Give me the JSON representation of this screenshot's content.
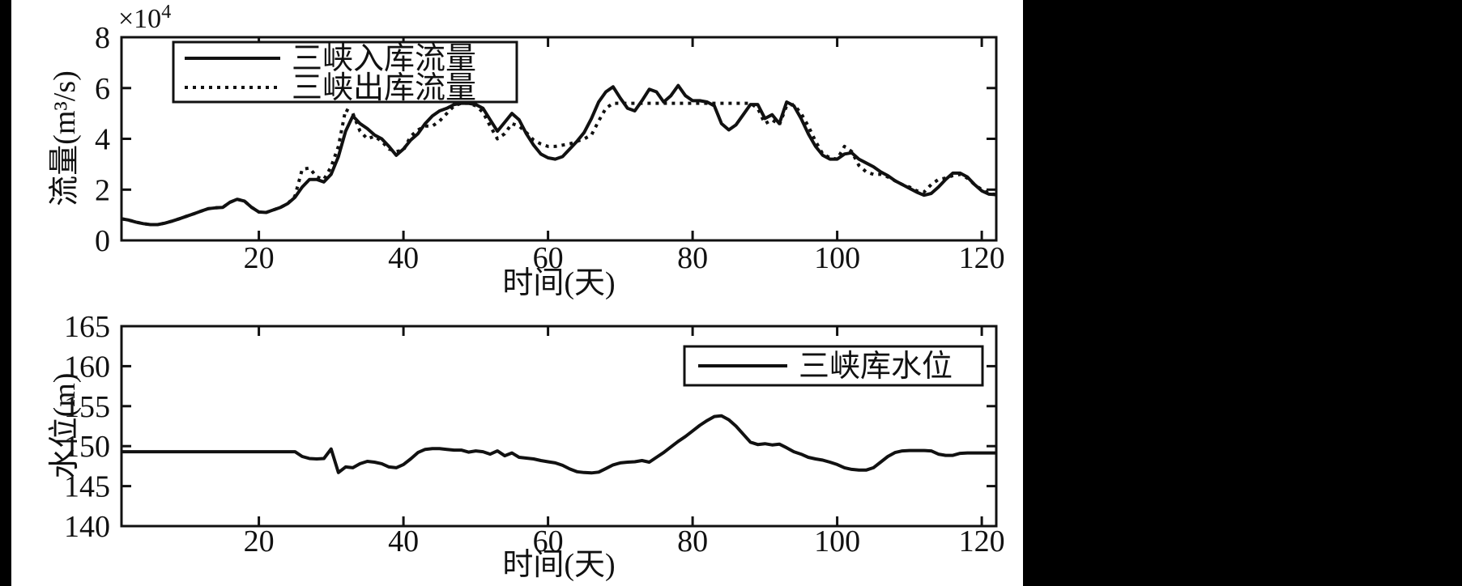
{
  "figure": {
    "canvas_background": "#000000",
    "figure_background": "#ffffff",
    "ink_color": "#111111"
  },
  "chart_data": [
    {
      "type": "line",
      "title": "",
      "xlabel": "时间(天)",
      "ylabel": "流量(m³/s)",
      "y_multiplier": {
        "base": "×10",
        "exp": "4"
      },
      "xlim": [
        1,
        122
      ],
      "ylim": [
        0,
        8
      ],
      "xticks": [
        20,
        40,
        60,
        80,
        100,
        120
      ],
      "yticks": [
        0,
        2,
        4,
        6,
        8
      ],
      "grid": false,
      "legend": {
        "position": "top-left",
        "entries": [
          {
            "key": "inflow",
            "label": "三峡入库流量",
            "style": "solid"
          },
          {
            "key": "outflow",
            "label": "三峡出库流量",
            "style": "dotted"
          }
        ]
      },
      "x_start": 1,
      "x_step": 1,
      "series": [
        {
          "key": "inflow",
          "name": "三峡入库流量",
          "style": "solid",
          "values": [
            0.85,
            0.8,
            0.72,
            0.66,
            0.62,
            0.62,
            0.68,
            0.76,
            0.85,
            0.95,
            1.05,
            1.15,
            1.25,
            1.28,
            1.3,
            1.5,
            1.62,
            1.55,
            1.3,
            1.12,
            1.1,
            1.2,
            1.3,
            1.45,
            1.7,
            2.1,
            2.4,
            2.4,
            2.3,
            2.6,
            3.3,
            4.3,
            4.9,
            4.6,
            4.4,
            4.15,
            4.0,
            3.7,
            3.35,
            3.6,
            3.95,
            4.2,
            4.6,
            4.9,
            5.1,
            5.2,
            5.35,
            5.4,
            5.4,
            5.35,
            5.2,
            4.75,
            4.3,
            4.65,
            5.0,
            4.75,
            4.2,
            3.75,
            3.4,
            3.25,
            3.2,
            3.3,
            3.6,
            3.9,
            4.25,
            4.8,
            5.45,
            5.85,
            6.05,
            5.6,
            5.2,
            5.1,
            5.5,
            5.95,
            5.85,
            5.45,
            5.7,
            6.1,
            5.7,
            5.5,
            5.5,
            5.45,
            5.3,
            4.6,
            4.35,
            4.55,
            4.95,
            5.35,
            5.35,
            4.8,
            4.95,
            4.6,
            5.45,
            5.3,
            4.8,
            4.2,
            3.7,
            3.35,
            3.2,
            3.2,
            3.4,
            3.45,
            3.2,
            3.05,
            2.9,
            2.7,
            2.55,
            2.35,
            2.2,
            2.05,
            1.9,
            1.78,
            1.85,
            2.1,
            2.4,
            2.65,
            2.65,
            2.5,
            2.2,
            1.95,
            1.82,
            1.8
          ]
        },
        {
          "key": "outflow",
          "name": "三峡出库流量",
          "style": "dotted",
          "values": [
            0.85,
            0.8,
            0.72,
            0.66,
            0.62,
            0.62,
            0.68,
            0.76,
            0.85,
            0.95,
            1.05,
            1.15,
            1.25,
            1.28,
            1.3,
            1.5,
            1.62,
            1.55,
            1.3,
            1.12,
            1.1,
            1.2,
            1.3,
            1.45,
            1.75,
            2.8,
            2.85,
            2.5,
            2.4,
            2.9,
            3.7,
            5.15,
            5.0,
            4.3,
            4.0,
            4.1,
            3.9,
            3.6,
            3.5,
            3.55,
            4.1,
            4.35,
            4.5,
            4.5,
            4.7,
            5.0,
            5.3,
            5.4,
            5.4,
            5.3,
            5.05,
            4.5,
            4.0,
            4.2,
            4.6,
            4.5,
            4.25,
            3.95,
            3.8,
            3.7,
            3.7,
            3.75,
            3.8,
            3.9,
            4.0,
            4.15,
            4.7,
            5.2,
            5.4,
            5.4,
            5.4,
            5.4,
            5.4,
            5.4,
            5.4,
            5.4,
            5.4,
            5.4,
            5.4,
            5.4,
            5.4,
            5.4,
            5.4,
            5.4,
            5.4,
            5.4,
            5.4,
            5.4,
            5.2,
            4.6,
            4.75,
            4.55,
            5.3,
            5.35,
            5.0,
            4.5,
            3.9,
            3.4,
            3.25,
            3.2,
            3.7,
            3.5,
            2.95,
            2.7,
            2.6,
            2.6,
            2.5,
            2.35,
            2.2,
            2.1,
            1.95,
            1.9,
            2.2,
            2.4,
            2.45,
            2.55,
            2.6,
            2.45,
            2.2,
            2.0,
            1.85,
            1.8
          ]
        }
      ]
    },
    {
      "type": "line",
      "title": "",
      "xlabel": "时间(天)",
      "ylabel": "水位(m)",
      "xlim": [
        1,
        122
      ],
      "ylim": [
        140,
        165
      ],
      "xticks": [
        20,
        40,
        60,
        80,
        100,
        120
      ],
      "yticks": [
        140,
        145,
        150,
        155,
        160,
        165
      ],
      "grid": false,
      "legend": {
        "position": "top-right",
        "entries": [
          {
            "key": "water-level",
            "label": "三峡库水位",
            "style": "solid"
          }
        ]
      },
      "x_start": 1,
      "x_step": 1,
      "series": [
        {
          "key": "water-level",
          "name": "三峡库水位",
          "style": "solid",
          "values": [
            149.3,
            149.3,
            149.3,
            149.3,
            149.3,
            149.3,
            149.3,
            149.3,
            149.3,
            149.3,
            149.3,
            149.3,
            149.3,
            149.3,
            149.3,
            149.3,
            149.3,
            149.3,
            149.3,
            149.3,
            149.3,
            149.3,
            149.3,
            149.3,
            149.3,
            148.7,
            148.45,
            148.4,
            148.45,
            149.65,
            146.7,
            147.4,
            147.3,
            147.8,
            148.1,
            148.0,
            147.8,
            147.4,
            147.3,
            147.7,
            148.4,
            149.2,
            149.6,
            149.7,
            149.7,
            149.6,
            149.5,
            149.5,
            149.25,
            149.4,
            149.3,
            149.0,
            149.4,
            148.8,
            149.15,
            148.6,
            148.5,
            148.4,
            148.2,
            148.05,
            147.9,
            147.6,
            147.15,
            146.8,
            146.7,
            146.65,
            146.75,
            147.2,
            147.65,
            147.9,
            148.0,
            148.05,
            148.2,
            148.0,
            148.6,
            149.2,
            149.9,
            150.6,
            151.2,
            151.9,
            152.6,
            153.2,
            153.7,
            153.8,
            153.3,
            152.5,
            151.5,
            150.5,
            150.2,
            150.3,
            150.15,
            150.25,
            149.8,
            149.3,
            149.0,
            148.6,
            148.4,
            148.25,
            148.0,
            147.7,
            147.3,
            147.1,
            147.0,
            147.0,
            147.3,
            148.0,
            148.7,
            149.2,
            149.4,
            149.45,
            149.45,
            149.45,
            149.4,
            149.0,
            148.85,
            148.85,
            149.1,
            149.15,
            149.15,
            149.15,
            149.15,
            149.15
          ]
        }
      ]
    }
  ]
}
